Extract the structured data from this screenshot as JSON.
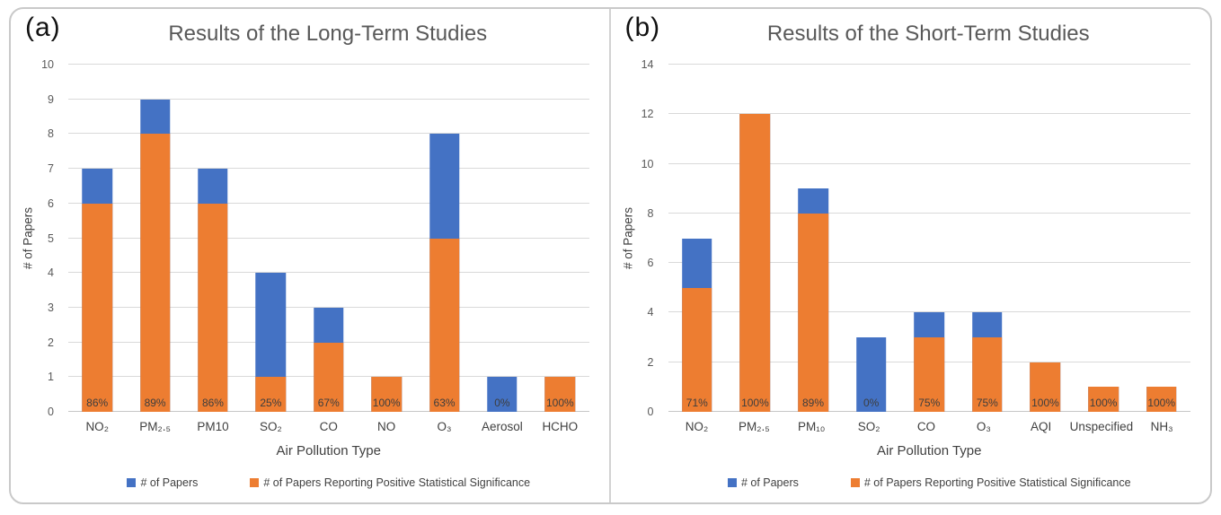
{
  "colors": {
    "papers_blue": "#4472C4",
    "positive_orange": "#ED7D31",
    "gridline_gray": "#D9D9D9",
    "title_gray": "#595959"
  },
  "chart_data": [
    {
      "type": "bar",
      "panel_tag": "(a)",
      "title": "Results of the Long-Term Studies",
      "xlabel": "Air Pollution Type",
      "ylabel": "# of Papers",
      "ylim": [
        0,
        10
      ],
      "ystep": 1,
      "grid": true,
      "legend_position": "bottom",
      "categories": [
        "NO₂",
        "PM₂.₅",
        "PM10",
        "SO₂",
        "CO",
        "NO",
        "O₃",
        "Aerosol",
        "HCHO"
      ],
      "series": [
        {
          "name": "# of Papers",
          "color": "#4472C4",
          "values": [
            7,
            9,
            7,
            4,
            3,
            1,
            8,
            1,
            1
          ]
        },
        {
          "name": "# of Papers Reporting Positive Statistical Significance",
          "color": "#ED7D31",
          "values": [
            6,
            8,
            6,
            1,
            2,
            1,
            5,
            0,
            1
          ]
        }
      ],
      "bar_labels": [
        "86%",
        "89%",
        "86%",
        "25%",
        "67%",
        "100%",
        "63%",
        "0%",
        "100%"
      ]
    },
    {
      "type": "bar",
      "panel_tag": "(b)",
      "title": "Results of the Short-Term Studies",
      "xlabel": "Air Pollution Type",
      "ylabel": "# of Papers",
      "ylim": [
        0,
        14
      ],
      "ystep": 2,
      "grid": true,
      "legend_position": "bottom",
      "categories": [
        "NO₂",
        "PM₂.₅",
        "PM₁₀",
        "SO₂",
        "CO",
        "O₃",
        "AQI",
        "Unspecified",
        "NH₃"
      ],
      "series": [
        {
          "name": "# of Papers",
          "color": "#4472C4",
          "values": [
            7,
            12,
            9,
            3,
            4,
            4,
            2,
            1,
            1
          ]
        },
        {
          "name": "# of Papers Reporting Positive Statistical Significance",
          "color": "#ED7D31",
          "values": [
            5,
            12,
            8,
            0,
            3,
            3,
            2,
            1,
            1
          ]
        }
      ],
      "bar_labels": [
        "71%",
        "100%",
        "89%",
        "0%",
        "75%",
        "75%",
        "100%",
        "100%",
        "100%"
      ]
    }
  ]
}
